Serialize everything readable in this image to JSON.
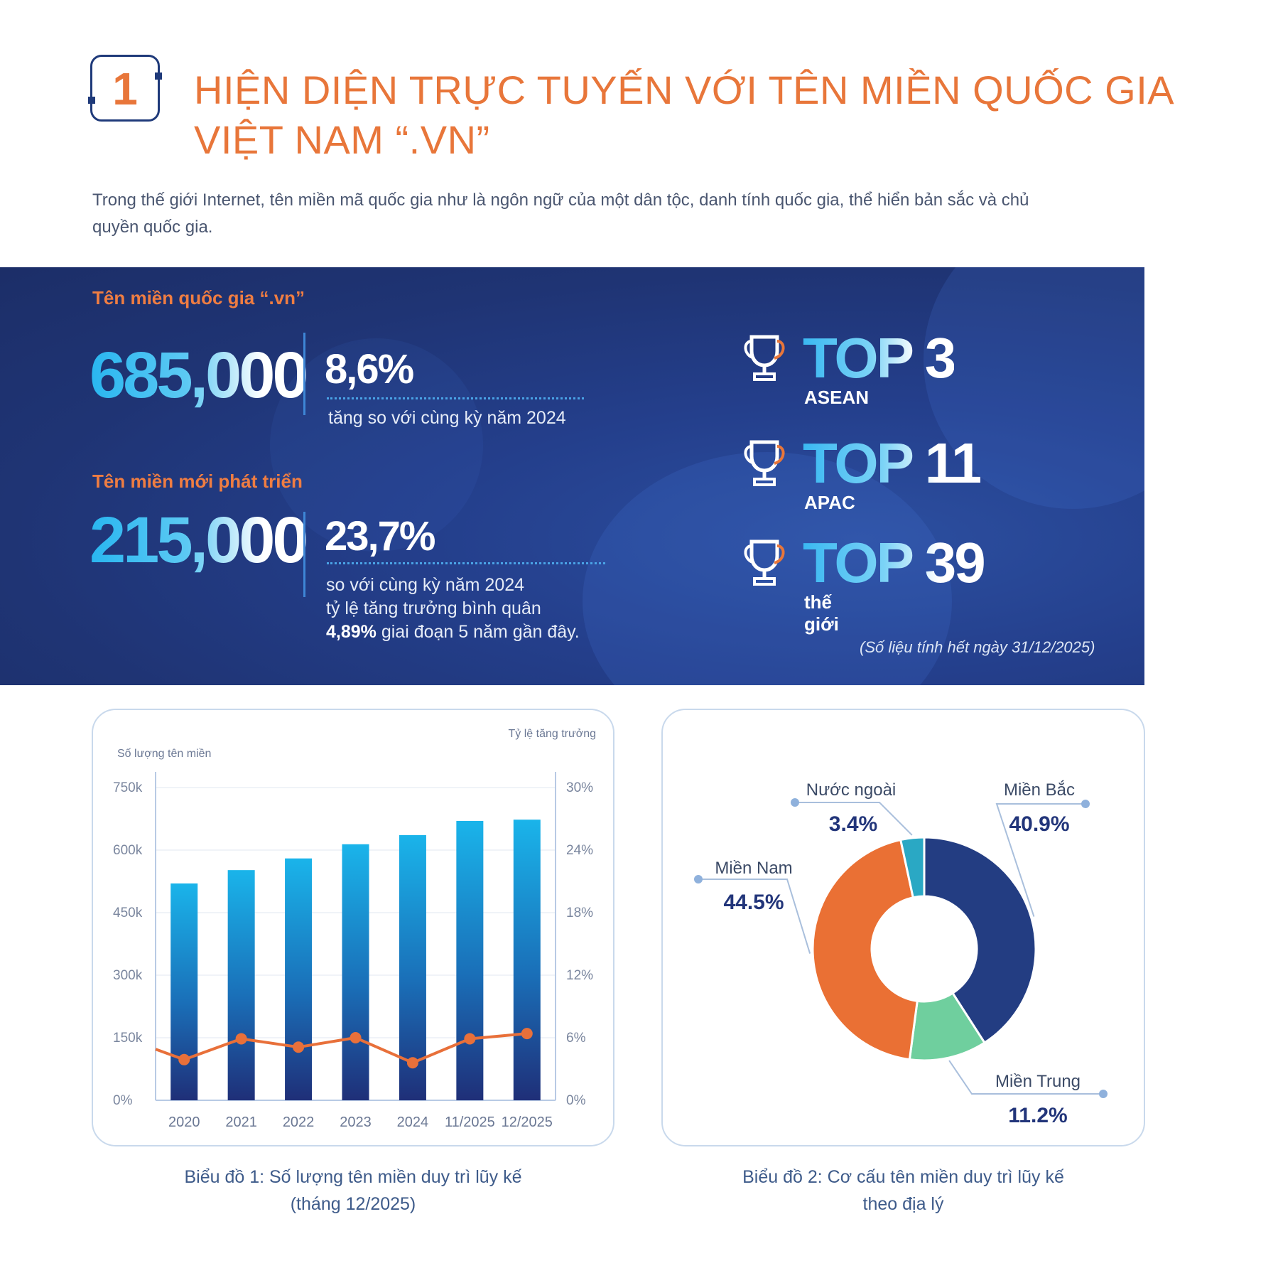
{
  "section": {
    "number": "1",
    "title_lines": [
      "HIỆN DIỆN TRỰC TUYẾN VỚI TÊN MIỀN QUỐC GIA",
      "VIỆT NAM “.VN”"
    ],
    "intro_lines": [
      "Trong thế giới Internet, tên miền mã quốc gia như là ngôn ngữ của một dân tộc, danh tính quốc gia, thể hiển bản sắc và chủ",
      "quyền quốc gia."
    ]
  },
  "banner": {
    "vn_domains": {
      "label": "Tên miền quốc gia “.vn”",
      "value": "685,000",
      "growth": "8,6%",
      "growth_note": "tăng so với cùng kỳ năm 2024"
    },
    "new_domains": {
      "label": "Tên miền mới phát triển",
      "value": "215,000",
      "growth": "23,7%",
      "note_lines": [
        "so với cùng kỳ năm 2024",
        "tỷ lệ tăng trưởng bình quân"
      ],
      "note_bold": "4,89%",
      "note_tail": " giai đoạn 5 năm gần đây."
    },
    "rankings": [
      {
        "rank": "TOP 3",
        "region": "ASEAN"
      },
      {
        "rank": "TOP 11",
        "region": "APAC"
      },
      {
        "rank": "TOP 39",
        "region": "thế giới"
      }
    ],
    "source_note": "(Số liệu tính hết ngày 31/12/2025)",
    "colors": {
      "background": "#1f3474",
      "accent_orange": "#ef7d42",
      "number_blue": "#29b6f0"
    }
  },
  "chart_data": [
    {
      "type": "bar",
      "title": "",
      "ylabel": "Số lượng tên miền",
      "y2label": "Tỷ lệ tăng trưởng",
      "categories": [
        "2020",
        "2021",
        "2022",
        "2023",
        "2024",
        "11/2025",
        "12/2025"
      ],
      "ylim": [
        0,
        750000
      ],
      "yticks": [
        "0%",
        "150k",
        "300k",
        "450k",
        "600k",
        "750k"
      ],
      "y2lim": [
        0,
        30
      ],
      "y2ticks": [
        "0%",
        "6%",
        "12%",
        "18%",
        "24%",
        "30%"
      ],
      "series": [
        {
          "kind": "bar",
          "values": [
            520000,
            552000,
            580000,
            614000,
            636000,
            670000,
            673000
          ],
          "color": "#1ea2de"
        },
        {
          "kind": "line",
          "axis": "right",
          "values": [
            3.9,
            5.9,
            5.1,
            6.0,
            3.6,
            5.9,
            6.4
          ],
          "color": "#e8703a"
        }
      ],
      "caption_lines": [
        "Biểu đồ 1: Số lượng tên miền duy trì lũy kế",
        "(tháng 12/2025)"
      ]
    },
    {
      "type": "pie",
      "slices": [
        {
          "label": "Miền Bắc",
          "value": 40.9,
          "text": "40.9%",
          "color": "#233d82"
        },
        {
          "label": "Miền Trung",
          "value": 11.2,
          "text": "11.2%",
          "color": "#6fcf9e"
        },
        {
          "label": "Miền Nam",
          "value": 44.5,
          "text": "44.5%",
          "color": "#ea7034"
        },
        {
          "label": "Nước ngoài",
          "value": 3.4,
          "text": "3.4%",
          "color": "#2aa8c4"
        }
      ],
      "caption_lines": [
        "Biểu đồ 2: Cơ cấu tên miền duy trì lũy kế",
        "theo địa lý"
      ]
    }
  ]
}
